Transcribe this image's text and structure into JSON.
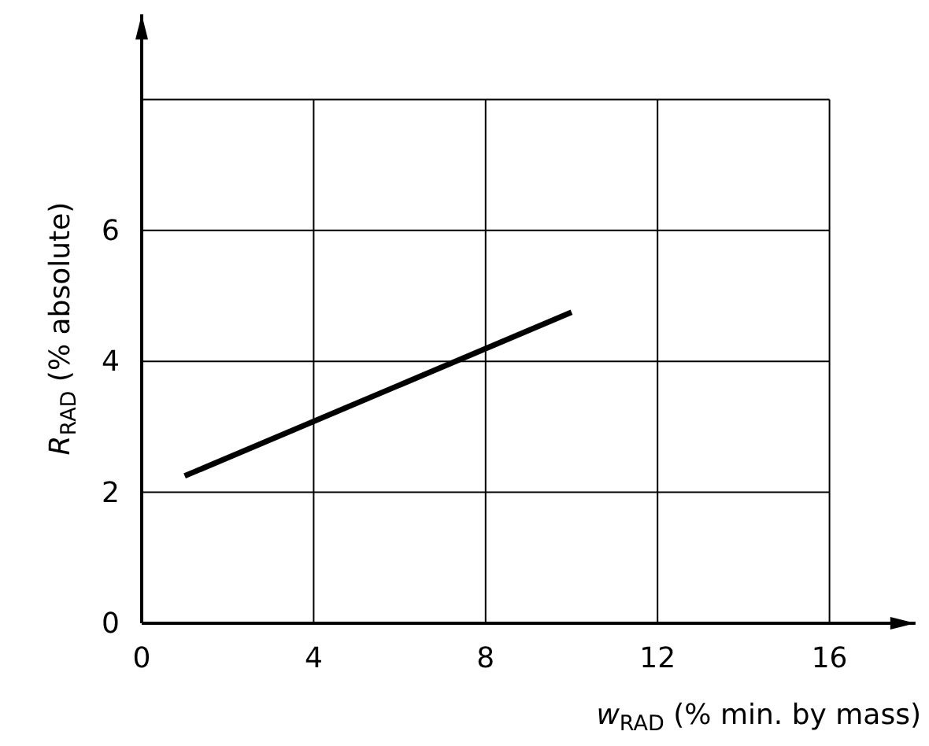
{
  "chart_data": {
    "type": "line",
    "xlabel": "w$_{RAD}$ (% min. by mass)",
    "ylabel": "R$_{RAD}$ (% absolute)",
    "x": [
      1,
      10
    ],
    "series": [
      {
        "color": "#000000",
        "values": [
          2.25,
          4.75
        ]
      }
    ],
    "xlim": [
      0,
      18
    ],
    "ylim": [
      0,
      9.3
    ],
    "xticks": [
      0,
      4,
      8,
      12,
      16
    ],
    "yticks": [
      0,
      2,
      4,
      6,
      {
        "value": 8,
        "label": null
      }
    ],
    "grid": true,
    "marker": "none",
    "line_style": "solid"
  }
}
